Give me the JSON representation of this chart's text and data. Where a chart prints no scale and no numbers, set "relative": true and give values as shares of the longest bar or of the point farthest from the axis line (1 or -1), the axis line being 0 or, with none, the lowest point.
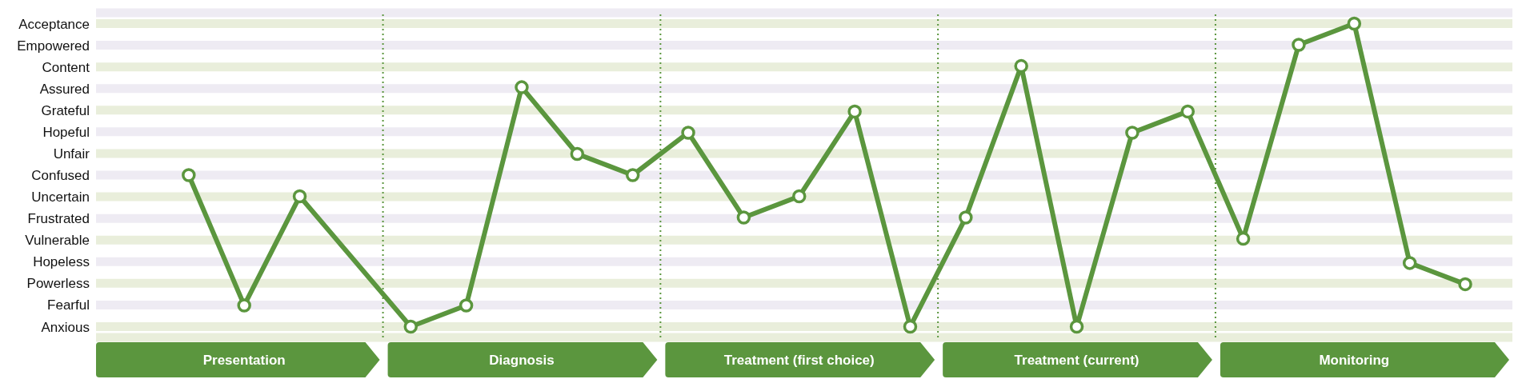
{
  "chart_data": {
    "type": "line",
    "relative": true,
    "categories": [
      null,
      "Presentation",
      null,
      null,
      null,
      null,
      "Diagnosis",
      null,
      null,
      null,
      null,
      "Treatment (first choice)",
      null,
      null,
      null,
      null,
      "Treatment (current)",
      null,
      null,
      null,
      null,
      "Monitoring",
      null,
      null
    ],
    "y_categories": [
      "Acceptance",
      "Empowered",
      "Content",
      "Assured",
      "Grateful",
      "Hopeful",
      "Unfair",
      "Confused",
      "Uncertain",
      "Frustrated",
      "Vulnerable",
      "Hopeless",
      "Powerless",
      "Fearful",
      "Anxious"
    ],
    "series": [
      {
        "color": "#5b963e",
        "values": [
          0.5,
          0.07,
          0.43,
          null,
          0,
          0.07,
          0.79,
          0.57,
          0.5,
          0.64,
          0.36,
          0.43,
          0.71,
          0,
          0.36,
          0.86,
          0,
          0.64,
          0.71,
          0.29,
          0.93,
          1,
          0.21,
          0.14
        ]
      }
    ],
    "grid": "y",
    "marker": "circle",
    "line_style": "solid"
  }
}
